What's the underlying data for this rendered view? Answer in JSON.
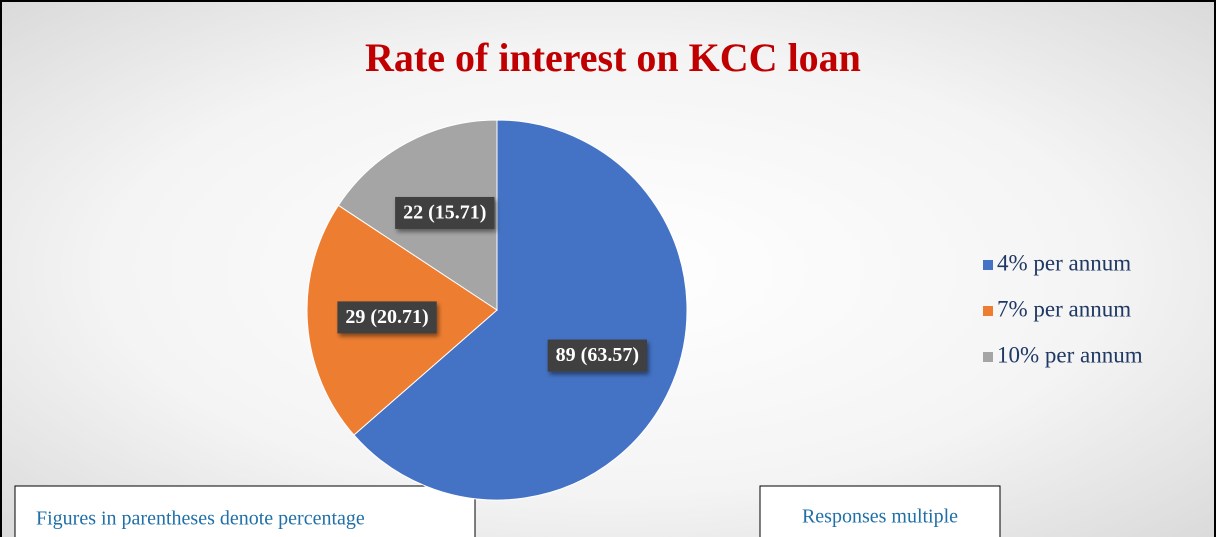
{
  "chart_data": {
    "type": "pie",
    "title": "Rate of interest on KCC loan",
    "categories": [
      "4% per annum",
      "7% per annum",
      "10% per annum"
    ],
    "values": [
      89,
      29,
      22
    ],
    "value_labels": [
      "89 (63.57)",
      "29 (20.71)",
      "22 (15.71)"
    ],
    "colors": [
      "#4472c4",
      "#ed7d31",
      "#a5a5a5"
    ],
    "legend": "right",
    "annotations": [
      "Figures in parentheses denote percentage",
      "Responses multiple"
    ]
  }
}
